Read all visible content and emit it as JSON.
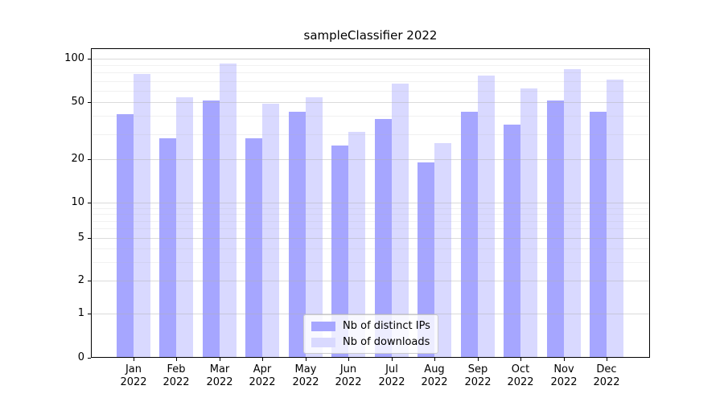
{
  "chart_data": {
    "type": "bar",
    "title": "sampleClassifier 2022",
    "categories": [
      "Jan",
      "Feb",
      "Mar",
      "Apr",
      "May",
      "Jun",
      "Jul",
      "Aug",
      "Sep",
      "Oct",
      "Nov",
      "Dec"
    ],
    "year_label": "2022",
    "series": [
      {
        "name": "Nb of distinct IPs",
        "color": "#a6a6ff",
        "values": [
          41,
          28,
          51,
          28,
          43,
          25,
          38,
          19,
          43,
          35,
          51,
          43
        ]
      },
      {
        "name": "Nb of downloads",
        "color": "#d9d9ff",
        "values": [
          78,
          54,
          93,
          49,
          54,
          31,
          67,
          26,
          76,
          62,
          85,
          72
        ]
      }
    ],
    "yscale": "symlog",
    "y_tick_values": [
      0,
      1,
      2,
      5,
      10,
      20,
      50,
      100
    ],
    "y_tick_labels": [
      "0",
      "1",
      "2",
      "5",
      "10",
      "20",
      "50",
      "100"
    ],
    "ylim": [
      0,
      118
    ],
    "grid": "on",
    "legend_position": "lower center",
    "colors": {
      "bar_dark": "#a6a6ff",
      "bar_light": "#d9d9ff",
      "grid_major": "#c8c8c8",
      "grid_minor": "#ebebeb",
      "axis": "#000000"
    }
  }
}
